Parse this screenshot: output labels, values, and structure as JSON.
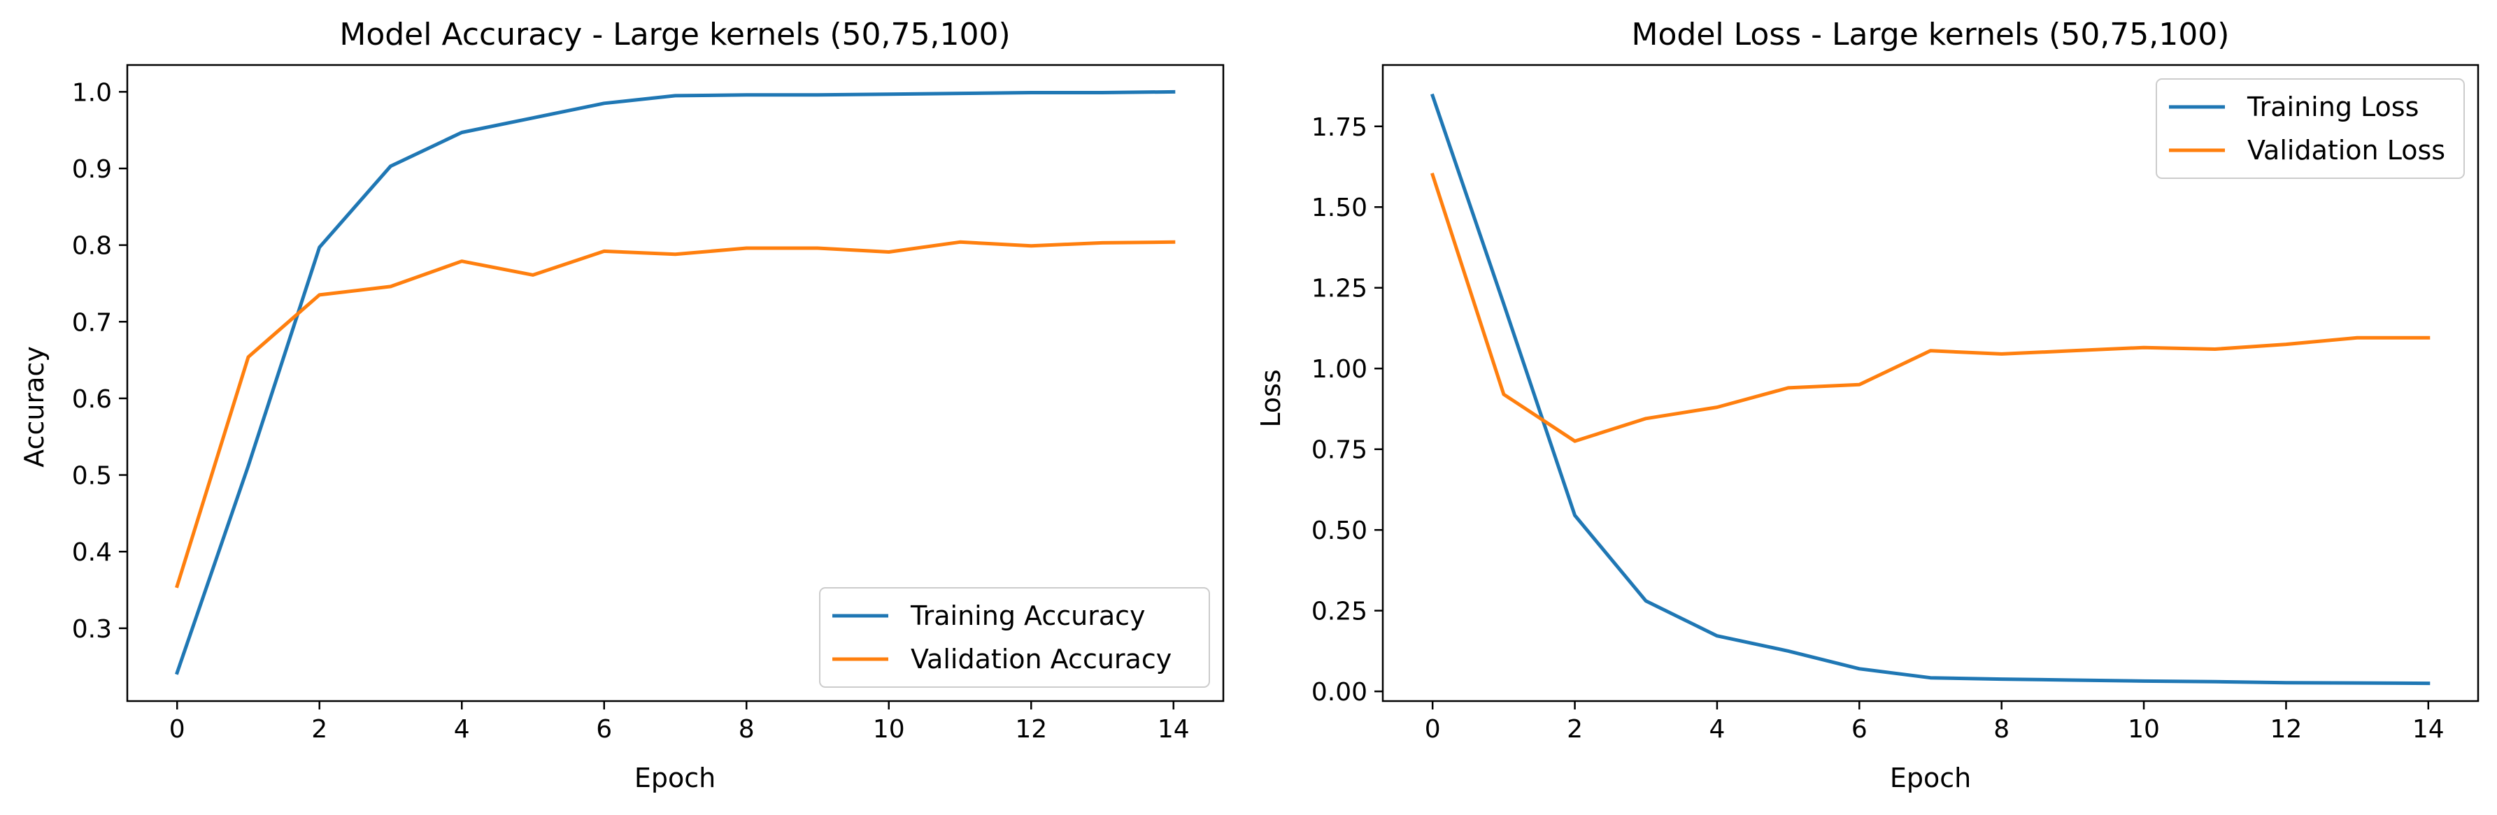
{
  "colors": {
    "training": "#1f77b4",
    "validation": "#ff7f0e",
    "axes": "#000000",
    "legend_border": "#cccccc"
  },
  "chart_data": [
    {
      "type": "line",
      "title": "Model Accuracy - Large kernels (50,75,100)",
      "xlabel": "Epoch",
      "ylabel": "Accuracy",
      "xlim": [
        -0.7,
        14.7
      ],
      "ylim": [
        0.205,
        1.035
      ],
      "xticks": [
        0,
        2,
        4,
        6,
        8,
        10,
        12,
        14
      ],
      "xtick_labels": [
        "0",
        "2",
        "4",
        "6",
        "8",
        "10",
        "12",
        "14"
      ],
      "yticks": [
        0.3,
        0.4,
        0.5,
        0.6,
        0.7,
        0.8,
        0.9,
        1.0
      ],
      "ytick_labels": [
        "0.3",
        "0.4",
        "0.5",
        "0.6",
        "0.7",
        "0.8",
        "0.9",
        "1.0"
      ],
      "grid": false,
      "legend_position": "lower right",
      "x": [
        0,
        1,
        2,
        3,
        4,
        5,
        6,
        7,
        8,
        9,
        10,
        11,
        12,
        13,
        14
      ],
      "series": [
        {
          "name": "Training Accuracy",
          "color": "#1f77b4",
          "values": [
            0.242,
            0.512,
            0.797,
            0.903,
            0.947,
            0.966,
            0.985,
            0.995,
            0.996,
            0.996,
            0.997,
            0.998,
            0.999,
            0.999,
            1.0
          ]
        },
        {
          "name": "Validation Accuracy",
          "color": "#ff7f0e",
          "values": [
            0.355,
            0.654,
            0.735,
            0.746,
            0.779,
            0.761,
            0.792,
            0.788,
            0.796,
            0.796,
            0.791,
            0.804,
            0.799,
            0.803,
            0.804
          ]
        }
      ]
    },
    {
      "type": "line",
      "title": "Model Loss - Large kernels (50,75,100)",
      "xlabel": "Epoch",
      "ylabel": "Loss",
      "xlim": [
        -0.7,
        14.7
      ],
      "ylim": [
        -0.03,
        1.94
      ],
      "xticks": [
        0,
        2,
        4,
        6,
        8,
        10,
        12,
        14
      ],
      "xtick_labels": [
        "0",
        "2",
        "4",
        "6",
        "8",
        "10",
        "12",
        "14"
      ],
      "yticks": [
        0.0,
        0.25,
        0.5,
        0.75,
        1.0,
        1.25,
        1.5,
        1.75
      ],
      "ytick_labels": [
        "0.00",
        "0.25",
        "0.50",
        "0.75",
        "1.00",
        "1.25",
        "1.50",
        "1.75"
      ],
      "grid": false,
      "legend_position": "upper right",
      "x": [
        0,
        1,
        2,
        3,
        4,
        5,
        6,
        7,
        8,
        9,
        10,
        11,
        12,
        13,
        14
      ],
      "series": [
        {
          "name": "Training Loss",
          "color": "#1f77b4",
          "values": [
            1.845,
            1.2,
            0.545,
            0.28,
            0.172,
            0.125,
            0.07,
            0.042,
            0.038,
            0.035,
            0.032,
            0.03,
            0.027,
            0.026,
            0.025
          ]
        },
        {
          "name": "Validation Loss",
          "color": "#ff7f0e",
          "values": [
            1.6,
            0.92,
            0.775,
            0.845,
            0.88,
            0.94,
            0.95,
            1.055,
            1.045,
            1.055,
            1.065,
            1.06,
            1.075,
            1.095,
            1.095
          ]
        }
      ]
    }
  ]
}
